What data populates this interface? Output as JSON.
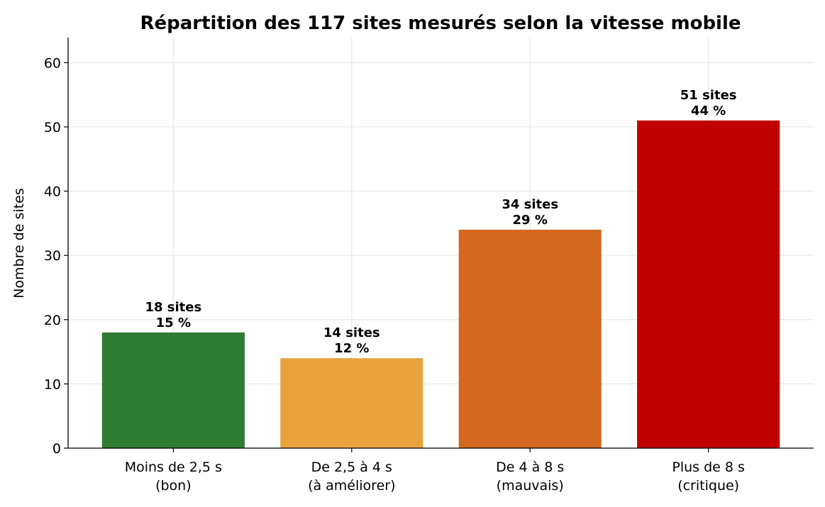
{
  "chart_data": {
    "type": "bar",
    "title": "Répartition des 117 sites mesurés selon la vitesse mobile",
    "y_label": "Nombre de sites",
    "categories": [
      "Moins de 2,5 s\n(bon)",
      "De 2,5 à 4 s\n(à améliorer)",
      "De 4 à 8 s\n(mauvais)",
      "Plus de 8 s\n(critique)"
    ],
    "values": [
      18,
      14,
      34,
      51
    ],
    "value_labels": [
      "18 sites\n15 %",
      "14 sites\n12 %",
      "34 sites\n29 %",
      "51 sites\n44 %"
    ],
    "colors": [
      "#2e7d32",
      "#e8a33d",
      "#d2691e",
      "#c00000"
    ],
    "ylim": [
      0,
      63.9
    ],
    "yticks": [
      0,
      10,
      20,
      30,
      40,
      50,
      60
    ],
    "grid": true
  }
}
